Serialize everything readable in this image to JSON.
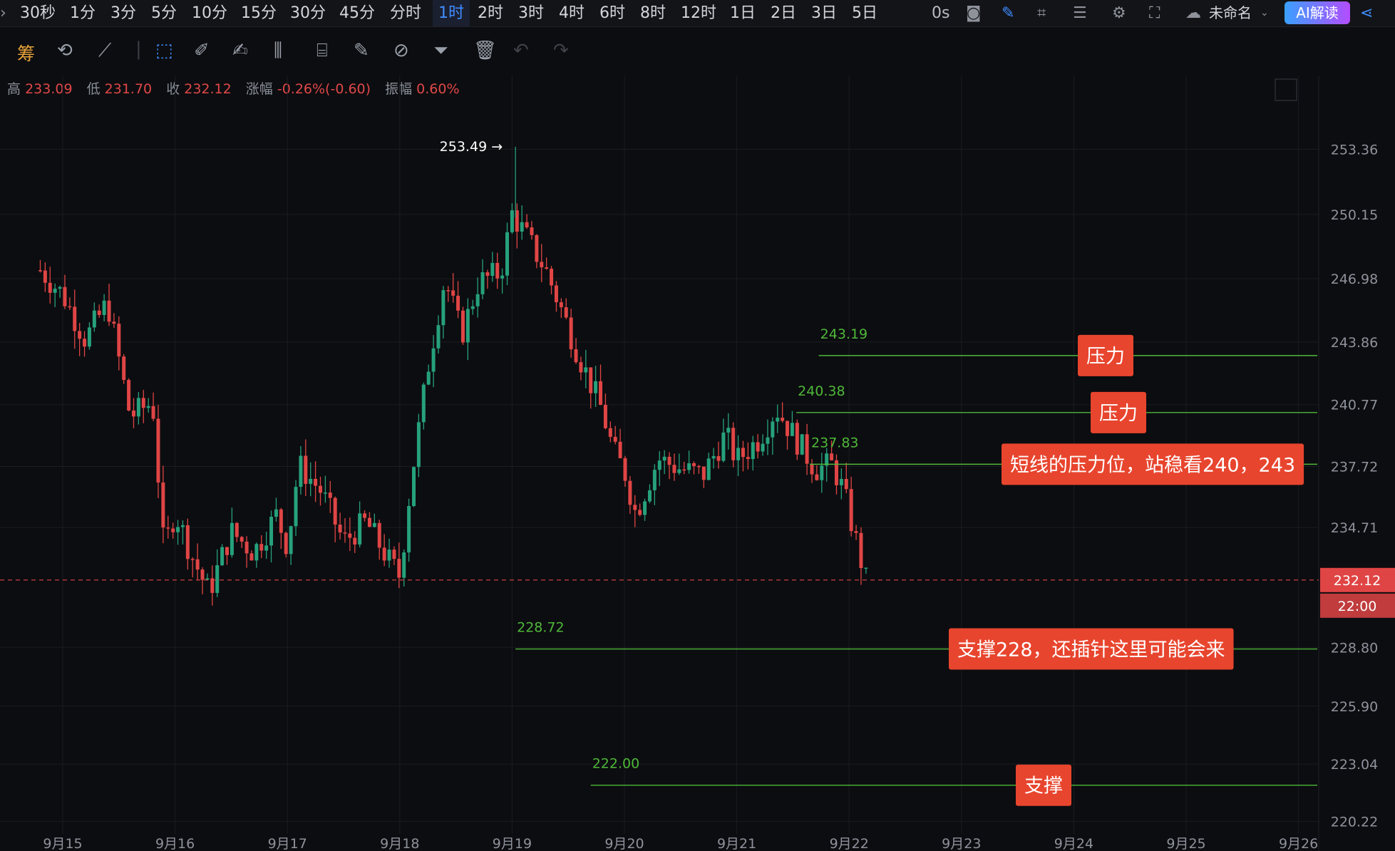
{
  "timeframes": [
    "30秒",
    "1分",
    "3分",
    "5分",
    "10分",
    "15分",
    "30分",
    "45分",
    "分时",
    "1时",
    "2时",
    "3时",
    "4时",
    "6时",
    "8时",
    "12时",
    "1日",
    "2日",
    "3日",
    "5日"
  ],
  "active_timeframe": "1时",
  "countdown": "0s",
  "layout_name": "未命名",
  "ai_button": "AI解读",
  "toolbar_first": "筹",
  "stats": {
    "high_label": "高",
    "high": "233.09",
    "low_label": "低",
    "low": "231.70",
    "close_label": "收",
    "close": "232.12",
    "change_label": "涨幅",
    "change": "-0.26%(-0.60)",
    "amp_label": "振幅",
    "amp": "0.60%"
  },
  "colors": {
    "up": "#26a17b",
    "down": "#e04545",
    "level": "#4fb83a",
    "annotation": "#e8452e"
  },
  "chart_data": {
    "type": "candlestick",
    "y_ticks": [
      "253.36",
      "250.15",
      "246.98",
      "243.86",
      "240.77",
      "237.72",
      "234.71",
      "228.80",
      "225.90",
      "223.04",
      "220.22"
    ],
    "x_ticks": [
      "9月15",
      "9月16",
      "9月17",
      "9月18",
      "9月19",
      "9月20",
      "9月21",
      "9月22",
      "9月23",
      "9月24",
      "9月25",
      "9月26"
    ],
    "ylim": [
      219.6,
      257.0
    ],
    "last_price": "232.12",
    "last_price_time": "22:00",
    "peak_label": "253.49",
    "close_path": [
      [
        14.8,
        247.4
      ],
      [
        15.0,
        246.2
      ],
      [
        15.2,
        244.0
      ],
      [
        15.4,
        245.8
      ],
      [
        15.6,
        240.2
      ],
      [
        15.8,
        240.9
      ],
      [
        15.9,
        233.6
      ],
      [
        16.0,
        235.5
      ],
      [
        16.15,
        233.3
      ],
      [
        16.3,
        231.5
      ],
      [
        16.5,
        234.5
      ],
      [
        16.7,
        233.5
      ],
      [
        16.9,
        235.3
      ],
      [
        17.0,
        233.8
      ],
      [
        17.1,
        237.8
      ],
      [
        17.3,
        236.5
      ],
      [
        17.5,
        234.0
      ],
      [
        17.7,
        235.0
      ],
      [
        17.9,
        233.1
      ],
      [
        18.0,
        232.3
      ],
      [
        18.1,
        237.0
      ],
      [
        18.25,
        242.6
      ],
      [
        18.4,
        247.0
      ],
      [
        18.55,
        244.2
      ],
      [
        18.7,
        246.8
      ],
      [
        18.9,
        247.3
      ],
      [
        19.0,
        250.2
      ],
      [
        19.1,
        249.3
      ],
      [
        19.3,
        247.4
      ],
      [
        19.45,
        245.3
      ],
      [
        19.6,
        243.1
      ],
      [
        19.8,
        240.5
      ],
      [
        19.9,
        238.5
      ],
      [
        20.0,
        237.5
      ],
      [
        20.1,
        235.4
      ],
      [
        20.3,
        238.1
      ],
      [
        20.5,
        237.6
      ],
      [
        20.7,
        237.3
      ],
      [
        20.9,
        239.3
      ],
      [
        21.0,
        238.0
      ],
      [
        21.2,
        239.1
      ],
      [
        21.35,
        240.6
      ],
      [
        21.5,
        239.3
      ],
      [
        21.7,
        237.6
      ],
      [
        21.85,
        237.8
      ],
      [
        21.95,
        236.5
      ],
      [
        22.05,
        234.3
      ],
      [
        22.15,
        232.1
      ]
    ],
    "levels": [
      {
        "value": 243.19,
        "label": "243.19",
        "from_day": 21.73
      },
      {
        "value": 240.38,
        "label": "240.38",
        "from_day": 21.53
      },
      {
        "value": 237.83,
        "label": "237.83",
        "from_day": 21.65
      },
      {
        "value": 228.72,
        "label": "228.72",
        "from_day": 19.03
      },
      {
        "value": 222.0,
        "label": "222.00",
        "from_day": 19.7
      }
    ],
    "annotations": [
      {
        "text": "压力",
        "value": 243.19
      },
      {
        "text": "压力",
        "value": 240.38
      },
      {
        "text": "短线的压力位，站稳看240，243",
        "value": 237.83
      },
      {
        "text": "支撑228，还插针这里可能会来",
        "value": 228.72
      },
      {
        "text": "支撑",
        "value": 222.0
      }
    ]
  }
}
